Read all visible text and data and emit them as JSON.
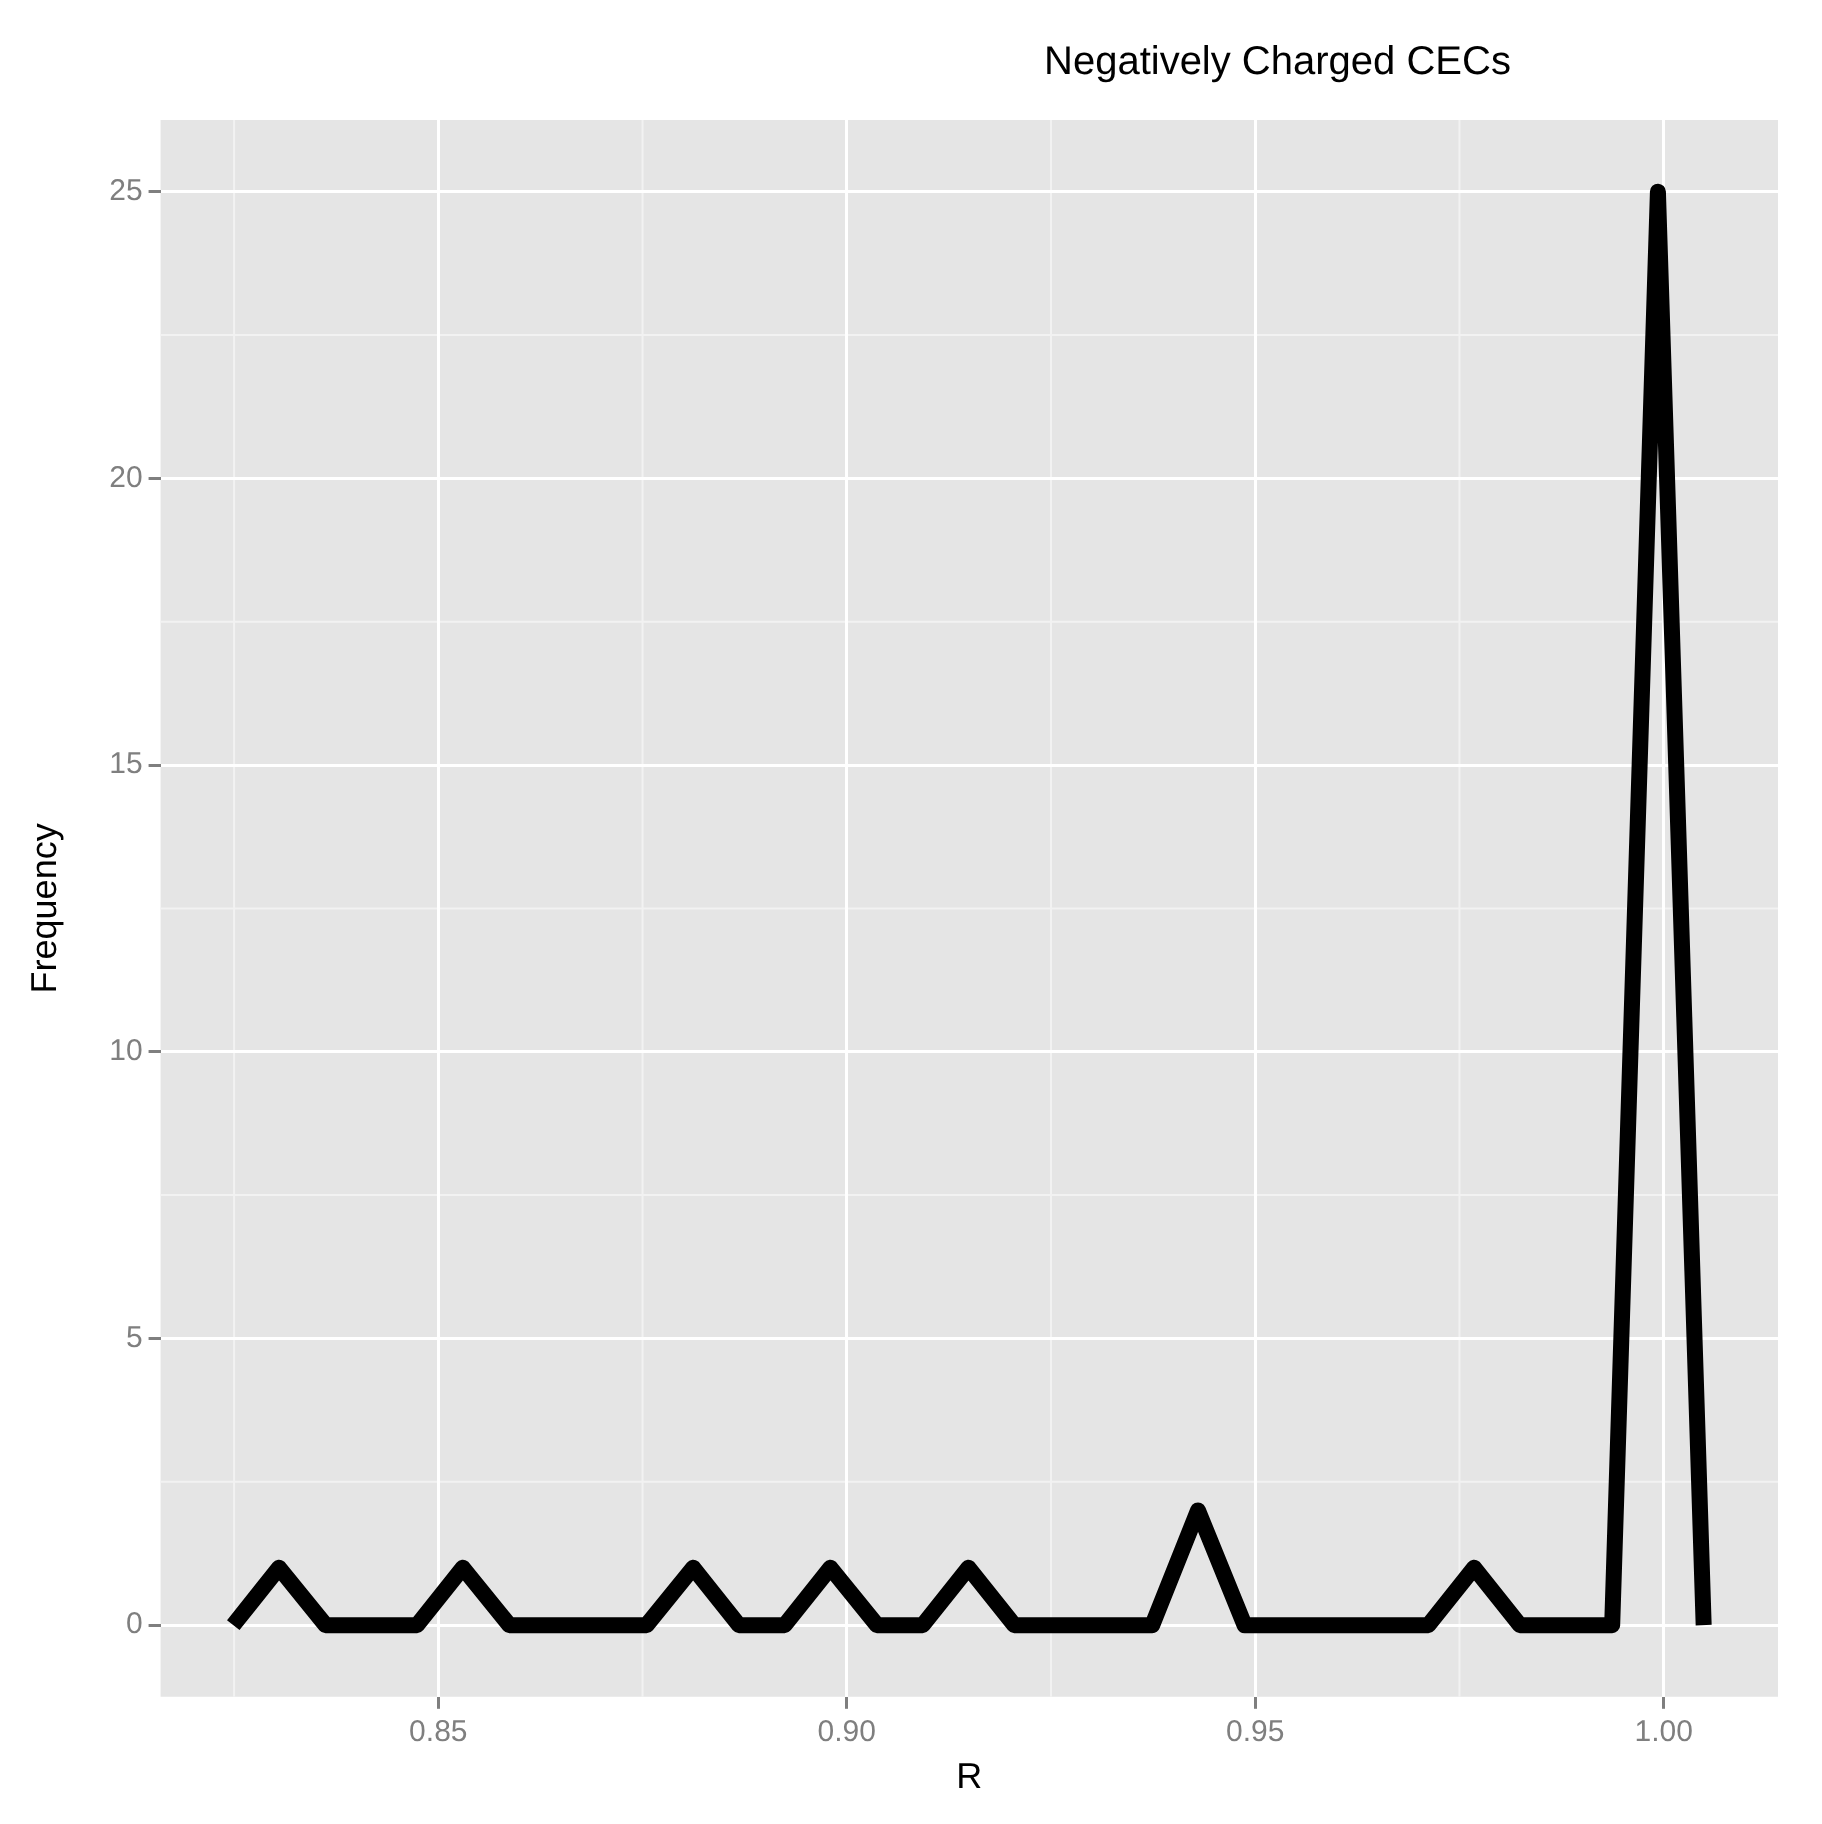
{
  "chart_data": {
    "type": "line",
    "title": "Negatively Charged CECs",
    "xlabel": "R",
    "ylabel": "Frequency",
    "x": [
      0.8249,
      0.8305,
      0.8362,
      0.8418,
      0.8474,
      0.853,
      0.8587,
      0.8643,
      0.8699,
      0.8755,
      0.8812,
      0.8868,
      0.8924,
      0.898,
      0.9037,
      0.9093,
      0.9149,
      0.9205,
      0.9262,
      0.9318,
      0.9374,
      0.943,
      0.9487,
      0.9543,
      0.9599,
      0.9655,
      0.9712,
      0.9768,
      0.9824,
      0.988,
      0.9937,
      0.9993,
      1.0049
    ],
    "series": [
      {
        "color": "#000000",
        "values": [
          0,
          1,
          0,
          0,
          0,
          1,
          0,
          0,
          0,
          0,
          1,
          0,
          0,
          1,
          0,
          0,
          1,
          0,
          0,
          0,
          0,
          2,
          0,
          0,
          0,
          0,
          0,
          1,
          0,
          0,
          0,
          25,
          0
        ]
      }
    ],
    "xlim": [
      0.816,
      1.014
    ],
    "xticks": [
      0.85,
      {
        "value": 0.9,
        "label": "0.90"
      },
      0.95,
      {
        "value": 1.0,
        "label": "1.00"
      }
    ],
    "ylim": [
      -1.25,
      26.25
    ],
    "yticks": [
      0,
      5,
      10,
      15,
      20,
      25
    ],
    "grid": true,
    "legend": false,
    "marker": "none",
    "line_style": "solid"
  }
}
